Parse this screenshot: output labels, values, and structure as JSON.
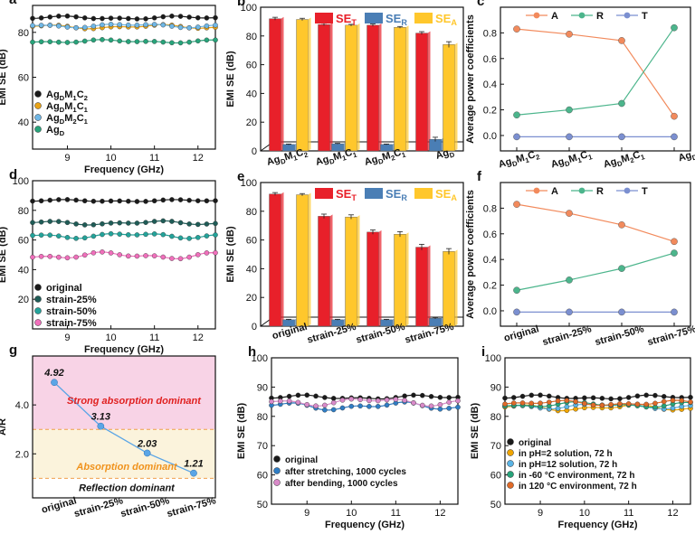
{
  "chart_data": [
    {
      "id": "a",
      "panel_label": "a",
      "type": "line",
      "xlabel": "Frequency (GHz)",
      "ylabel": "EMI SE (dB)",
      "xlim": [
        8.2,
        12.4
      ],
      "ylim": [
        28,
        92
      ],
      "xticks": [
        "8",
        "9",
        "10",
        "11",
        "12"
      ],
      "xtick_values": [
        8,
        9,
        10,
        11,
        12
      ],
      "yticks": [
        "40",
        "60",
        "80"
      ],
      "ytick_values": [
        40,
        60,
        80
      ],
      "legend_position": "bottom-left",
      "series": [
        {
          "name": "AgDM1C2",
          "label_parts": [
            "Ag",
            "D",
            "M",
            "1",
            "C",
            "2"
          ],
          "color": "#1a1a1a",
          "base": 86.5,
          "amp": 0.8
        },
        {
          "name": "AgDM1C1",
          "label_parts": [
            "Ag",
            "D",
            "M",
            "1",
            "C",
            "1"
          ],
          "color": "#e8a317",
          "base": 82.5,
          "amp": 1.0
        },
        {
          "name": "AgDM2C1",
          "label_parts": [
            "Ag",
            "D",
            "M",
            "2",
            "C",
            "1"
          ],
          "color": "#6fb7e6",
          "base": 83.0,
          "amp": 1.0
        },
        {
          "name": "AgD",
          "label_parts": [
            "Ag",
            "D"
          ],
          "color": "#27a37a",
          "base": 76.0,
          "amp": 0.8
        }
      ]
    },
    {
      "id": "b",
      "panel_label": "b",
      "type": "bar",
      "ylabel": "EMI SE (dB)",
      "ylim": [
        0,
        100
      ],
      "yticks": [
        "0",
        "20",
        "40",
        "60",
        "80",
        "100"
      ],
      "ytick_values": [
        0,
        20,
        40,
        60,
        80,
        100
      ],
      "categories": [
        "AgDM1C2",
        "AgDM1C1",
        "AgDM2C1",
        "AgD"
      ],
      "category_parts": [
        [
          "Ag",
          "D",
          "M",
          "1",
          "C",
          "2"
        ],
        [
          "Ag",
          "D",
          "M",
          "1",
          "C",
          "1"
        ],
        [
          "Ag",
          "D",
          "M",
          "2",
          "C",
          "1"
        ],
        [
          "Ag",
          "D"
        ]
      ],
      "legend": [
        {
          "main": "SE",
          "sub": "T",
          "color": "#e8202a"
        },
        {
          "main": "SE",
          "sub": "R",
          "color": "#4a7eb5"
        },
        {
          "main": "SE",
          "sub": "A",
          "color": "#ffc72c"
        }
      ],
      "series": [
        {
          "name": "SET",
          "values": [
            92,
            88,
            87.5,
            82
          ],
          "errors": [
            1.0,
            0.8,
            0.8,
            1.0
          ],
          "color": "#e8202a"
        },
        {
          "name": "SER",
          "values": [
            4.5,
            5,
            4.5,
            8
          ],
          "errors": [
            0.3,
            0.3,
            0.3,
            1.5
          ],
          "color": "#4a7eb5"
        },
        {
          "name": "SEA",
          "values": [
            91.5,
            87.5,
            86,
            74
          ],
          "errors": [
            0.8,
            0.6,
            0.6,
            2.0
          ],
          "color": "#ffc72c"
        }
      ]
    },
    {
      "id": "c",
      "panel_label": "c",
      "type": "line",
      "ylabel": "Average power coefficients",
      "ylim": [
        -0.12,
        1.0
      ],
      "yticks": [
        "0.0",
        "0.2",
        "0.4",
        "0.6",
        "0.8"
      ],
      "ytick_values": [
        0,
        0.2,
        0.4,
        0.6,
        0.8
      ],
      "categories": [
        "AgDM1C2",
        "AgDM1C1",
        "AgDM2C1",
        "AgD"
      ],
      "category_parts": [
        [
          "Ag",
          "D",
          "M",
          "1",
          "C",
          "2"
        ],
        [
          "Ag",
          "D",
          "M",
          "1",
          "C",
          "1"
        ],
        [
          "Ag",
          "D",
          "M",
          "2",
          "C",
          "1"
        ],
        [
          "Ag",
          "D"
        ]
      ],
      "series": [
        {
          "name": "A",
          "values": [
            0.83,
            0.79,
            0.74,
            0.15
          ],
          "color": "#f28a5c"
        },
        {
          "name": "R",
          "values": [
            0.16,
            0.2,
            0.25,
            0.84
          ],
          "color": "#4cb58c"
        },
        {
          "name": "T",
          "values": [
            -0.01,
            -0.01,
            -0.01,
            -0.01
          ],
          "color": "#7b8fd0"
        }
      ]
    },
    {
      "id": "d",
      "panel_label": "d",
      "type": "line",
      "xlabel": "Frequency (GHz)",
      "ylabel": "EMI SE (dB)",
      "xlim": [
        8.2,
        12.4
      ],
      "ylim": [
        0,
        100
      ],
      "xticks": [
        "8",
        "9",
        "10",
        "11",
        "12"
      ],
      "xtick_values": [
        8,
        9,
        10,
        11,
        12
      ],
      "yticks": [
        "20",
        "40",
        "60",
        "80",
        "100"
      ],
      "ytick_values": [
        20,
        40,
        60,
        80,
        100
      ],
      "legend_position": "bottom-left",
      "series": [
        {
          "name": "original",
          "label_parts": [
            "original"
          ],
          "color": "#1a1a1a",
          "base": 86.5,
          "amp": 0.8
        },
        {
          "name": "strain-25%",
          "label_parts": [
            "strain-25%"
          ],
          "color": "#1f5c57",
          "base": 71.5,
          "amp": 1.5
        },
        {
          "name": "strain-50%",
          "label_parts": [
            "strain-50%"
          ],
          "color": "#23a39a",
          "base": 63.0,
          "amp": 2.0
        },
        {
          "name": "strain-75%",
          "label_parts": [
            "strain-75%"
          ],
          "color": "#f06fbb",
          "base": 49.5,
          "amp": 2.5
        }
      ]
    },
    {
      "id": "e",
      "panel_label": "e",
      "type": "bar",
      "ylabel": "EMI SE (dB)",
      "ylim": [
        0,
        100
      ],
      "yticks": [
        "0",
        "20",
        "40",
        "60",
        "80",
        "100"
      ],
      "ytick_values": [
        0,
        20,
        40,
        60,
        80,
        100
      ],
      "categories": [
        "original",
        "strain-25%",
        "strain-50%",
        "strain-75%"
      ],
      "category_parts": [
        [
          "original"
        ],
        [
          "strain-25%"
        ],
        [
          "strain-50%"
        ],
        [
          "strain-75%"
        ]
      ],
      "legend": [
        {
          "main": "SE",
          "sub": "T",
          "color": "#e8202a"
        },
        {
          "main": "SE",
          "sub": "R",
          "color": "#4a7eb5"
        },
        {
          "main": "SE",
          "sub": "A",
          "color": "#ffc72c"
        }
      ],
      "series": [
        {
          "name": "SET",
          "values": [
            92,
            76.5,
            65.5,
            55
          ],
          "errors": [
            1.0,
            1.5,
            1.5,
            2.0
          ],
          "color": "#e8202a"
        },
        {
          "name": "SER",
          "values": [
            4.5,
            4.5,
            4.5,
            5.5
          ],
          "errors": [
            0.3,
            0.3,
            0.3,
            0.5
          ],
          "color": "#4a7eb5"
        },
        {
          "name": "SEA",
          "values": [
            91.5,
            76,
            64,
            52
          ],
          "errors": [
            0.8,
            1.5,
            1.8,
            2.0
          ],
          "color": "#ffc72c"
        }
      ]
    },
    {
      "id": "f",
      "panel_label": "f",
      "type": "line",
      "ylabel": "Average power coefficients",
      "ylim": [
        -0.12,
        1.0
      ],
      "yticks": [
        "0.0",
        "0.2",
        "0.4",
        "0.6",
        "0.8"
      ],
      "ytick_values": [
        0,
        0.2,
        0.4,
        0.6,
        0.8
      ],
      "categories": [
        "original",
        "strain-25%",
        "strain-50%",
        "strain-75%"
      ],
      "category_parts": [
        [
          "original"
        ],
        [
          "strain-25%"
        ],
        [
          "strain-50%"
        ],
        [
          "strain-75%"
        ]
      ],
      "series": [
        {
          "name": "A",
          "values": [
            0.83,
            0.76,
            0.67,
            0.54
          ],
          "color": "#f28a5c"
        },
        {
          "name": "R",
          "values": [
            0.16,
            0.24,
            0.33,
            0.45
          ],
          "color": "#4cb58c"
        },
        {
          "name": "T",
          "values": [
            -0.01,
            -0.01,
            -0.01,
            -0.01
          ],
          "color": "#7b8fd0"
        }
      ]
    },
    {
      "id": "g",
      "panel_label": "g",
      "type": "line",
      "ylabel": "A/R",
      "ylim": [
        0.2,
        6.0
      ],
      "yticks": [
        "2.0",
        "4.0"
      ],
      "ytick_values": [
        2,
        4
      ],
      "categories": [
        "original",
        "strain-25%",
        "strain-50%",
        "strain-75%"
      ],
      "values": [
        4.92,
        3.13,
        2.03,
        1.21
      ],
      "value_labels": [
        "4.92",
        "3.13",
        "2.03",
        "1.21"
      ],
      "line_color": "#5aa5e6",
      "thresholds": [
        3.0,
        1.0
      ],
      "regions": [
        {
          "label": "Strong absorption dominant",
          "from": 3.0,
          "to": 6.0,
          "fill": "#f8d3e6",
          "text_color": "#e02020"
        },
        {
          "label": "Absorption dominant",
          "from": 1.0,
          "to": 3.0,
          "fill": "#fbf3dc",
          "text_color": "#f0921c"
        },
        {
          "label": "Reflection dominant",
          "from": 0.2,
          "to": 1.0,
          "fill": "#ffffff",
          "text_color": "#111111"
        }
      ]
    },
    {
      "id": "h",
      "panel_label": "h",
      "type": "line",
      "xlabel": "Frequency (GHz)",
      "ylabel": "EMI SE (dB)",
      "xlim": [
        8.2,
        12.4
      ],
      "ylim": [
        50,
        100
      ],
      "xticks": [
        "8",
        "9",
        "10",
        "11",
        "12"
      ],
      "xtick_values": [
        8,
        9,
        10,
        11,
        12
      ],
      "yticks": [
        "50",
        "60",
        "70",
        "80",
        "90",
        "100"
      ],
      "ytick_values": [
        50,
        60,
        70,
        80,
        90,
        100
      ],
      "legend_position": "bottom-left",
      "series": [
        {
          "name": "original",
          "label_parts": [
            "original"
          ],
          "color": "#1a1a1a",
          "base": 86.5,
          "amp": 0.8
        },
        {
          "name": "after stretching, 1000 cycles",
          "label_parts": [
            "after stretching, 1000 cycles"
          ],
          "color": "#2f7dc4",
          "base": 83.5,
          "amp": 1.5
        },
        {
          "name": "after bending, 1000 cycles",
          "label_parts": [
            "after bending, 1000 cycles"
          ],
          "color": "#d98ac9",
          "base": 85.0,
          "amp": 1.5
        }
      ]
    },
    {
      "id": "i",
      "panel_label": "i",
      "type": "line",
      "xlabel": "Frequency (GHz)",
      "ylabel": "EMI SE (dB)",
      "xlim": [
        8.2,
        12.4
      ],
      "ylim": [
        50,
        100
      ],
      "xticks": [
        "8",
        "9",
        "10",
        "11",
        "12"
      ],
      "xtick_values": [
        8,
        9,
        10,
        11,
        12
      ],
      "yticks": [
        "50",
        "60",
        "70",
        "80",
        "90",
        "100"
      ],
      "ytick_values": [
        50,
        60,
        70,
        80,
        90,
        100
      ],
      "legend_position": "bottom-left",
      "series": [
        {
          "name": "original",
          "label_parts": [
            "original"
          ],
          "color": "#1a1a1a",
          "base": 86.5,
          "amp": 0.8
        },
        {
          "name": "in pH=2 solution, 72 h",
          "label_parts": [
            "in pH=2 solution, 72 h"
          ],
          "color": "#f0a500",
          "base": 83.0,
          "amp": 1.2
        },
        {
          "name": "in pH=12 solution, 72 h",
          "label_parts": [
            "in pH=12 solution, 72 h"
          ],
          "color": "#5ab4e5",
          "base": 83.5,
          "amp": 1.0
        },
        {
          "name": "in -60 °C environment, 72 h",
          "label_parts": [
            "in -60 °C environment, 72 h"
          ],
          "color": "#27a37a",
          "base": 84.0,
          "amp": 1.0
        },
        {
          "name": "in 120 °C environment, 72 h",
          "label_parts": [
            "in 120 °C environment, 72 h"
          ],
          "color": "#e06a28",
          "base": 84.5,
          "amp": 1.0
        }
      ]
    }
  ]
}
